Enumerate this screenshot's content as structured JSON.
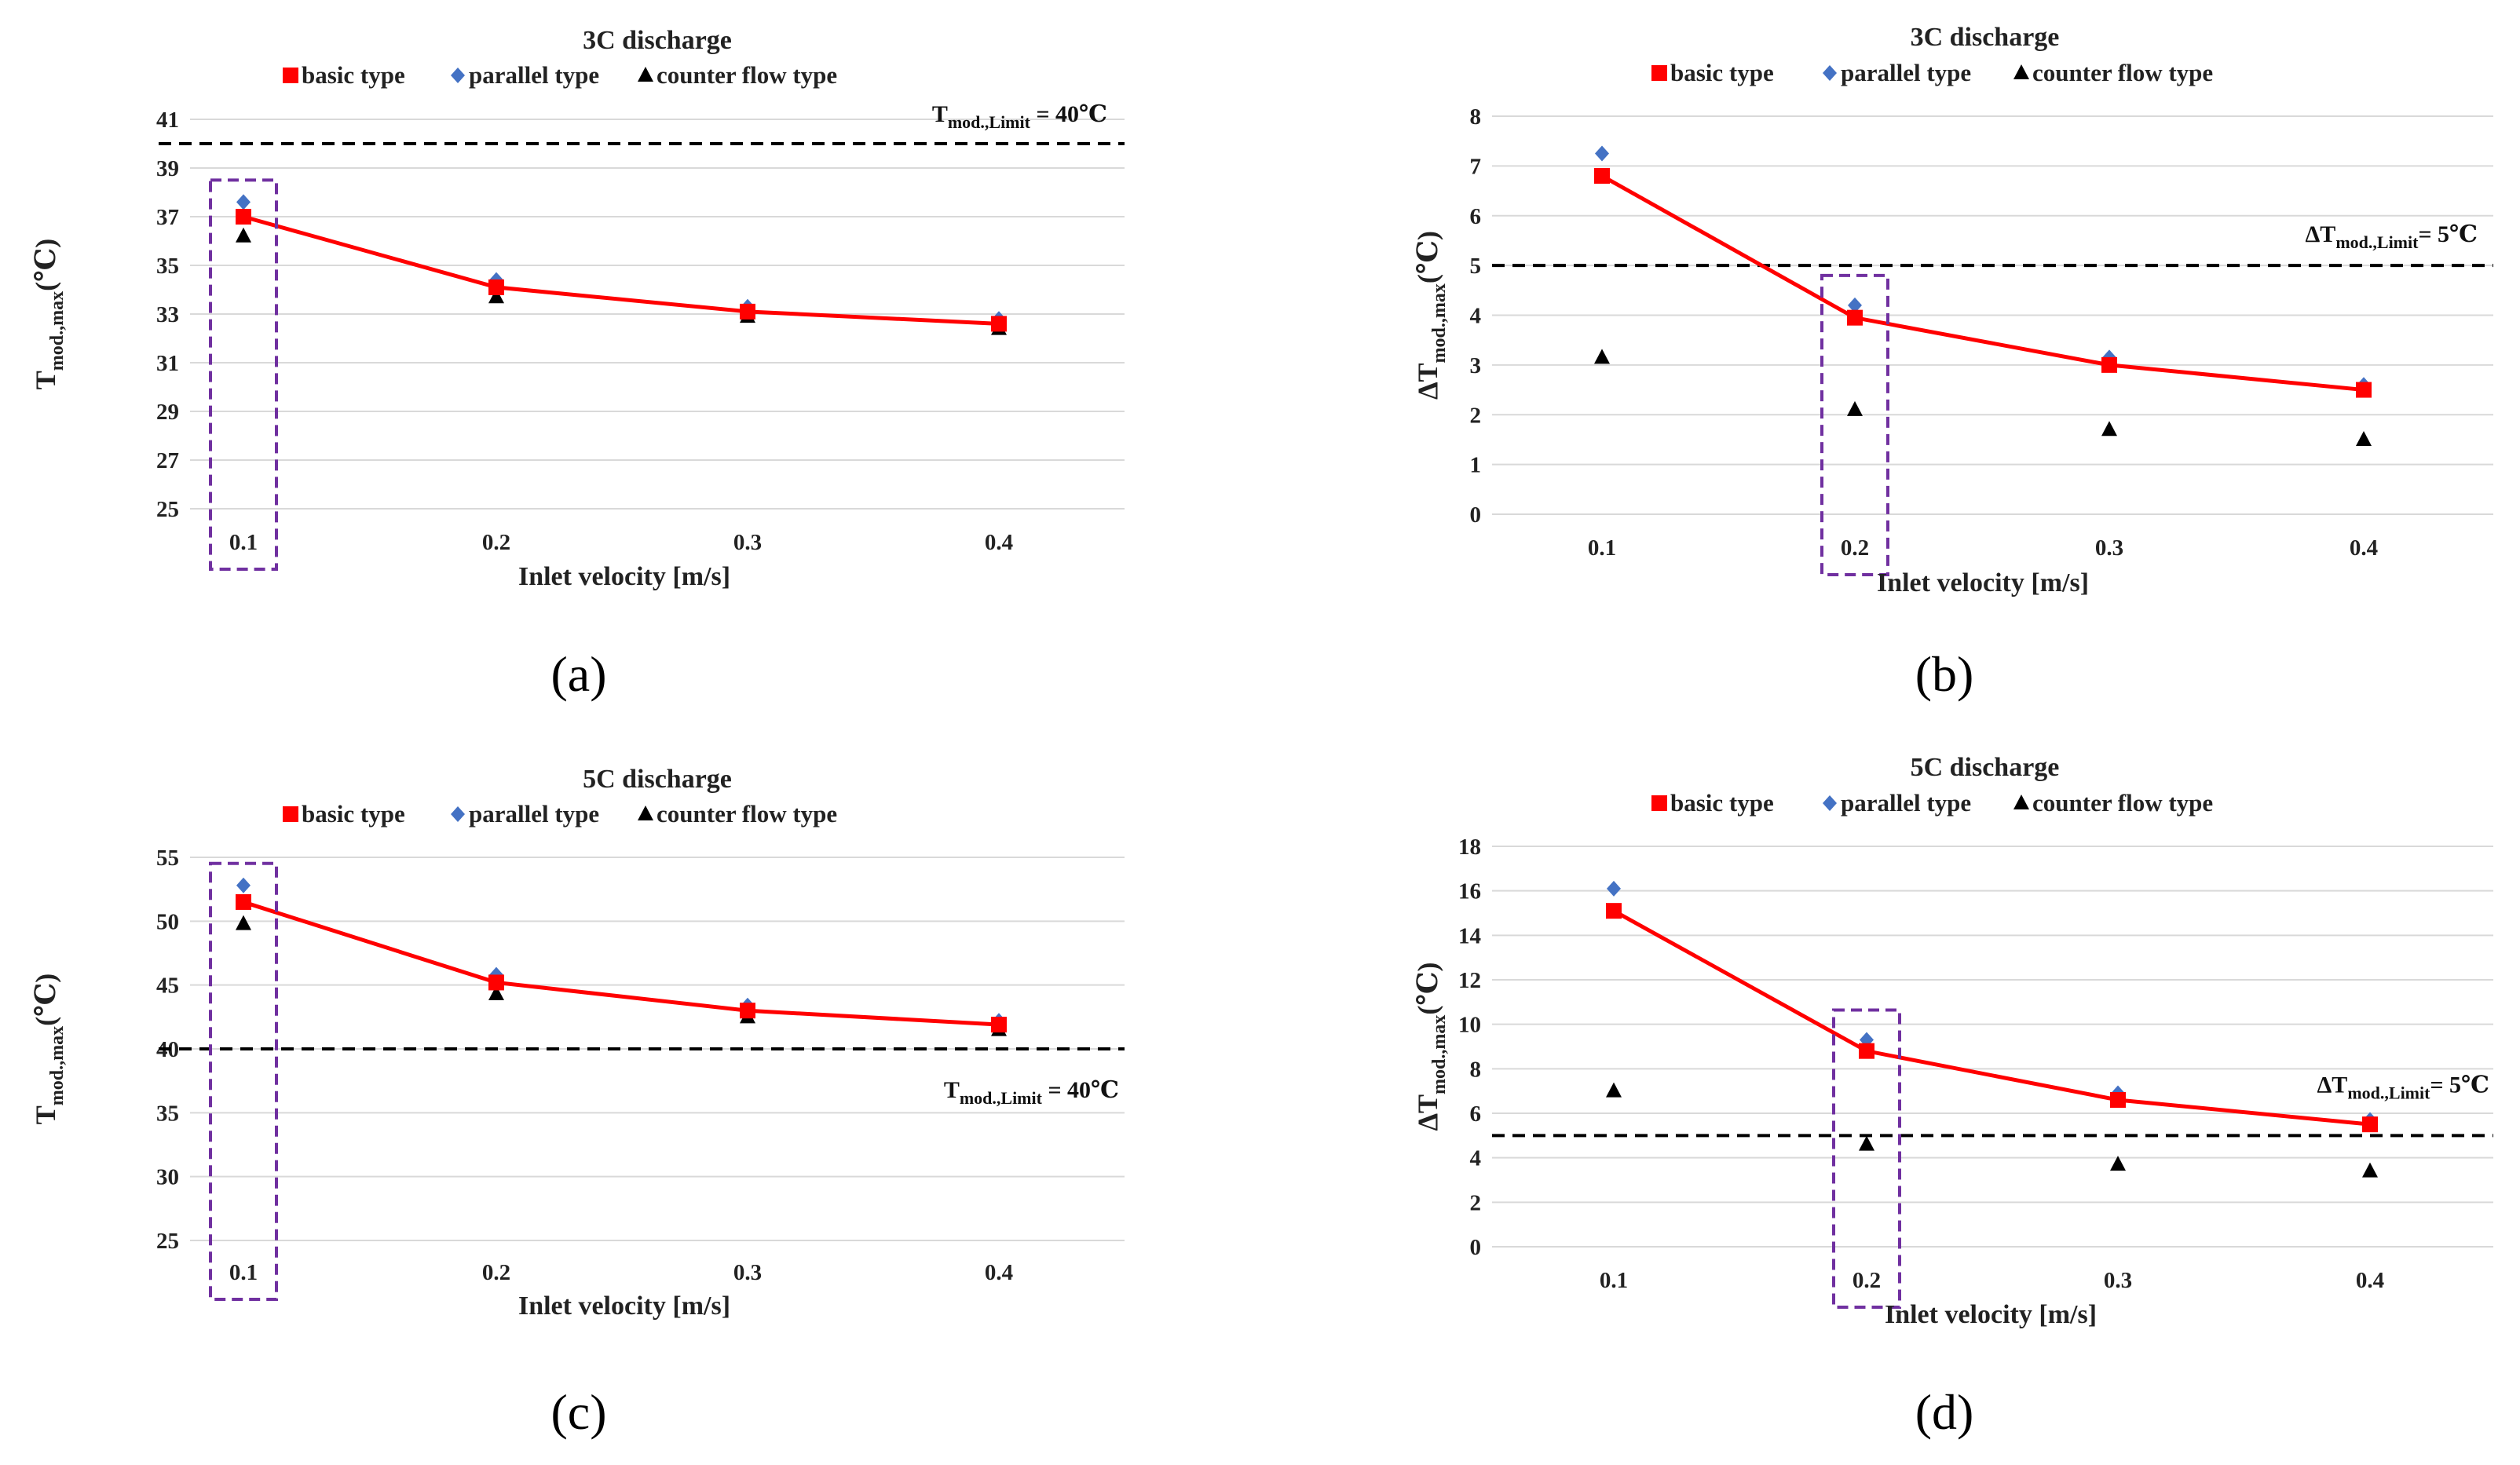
{
  "colors": {
    "basic": "#ff0000",
    "parallel": "#4472c4",
    "counter": "#000000",
    "highlight": "#7030a0",
    "grid": "#d9d9d9",
    "limit_line": "#000000"
  },
  "chart_data": [
    {
      "panel": "(a)",
      "type": "line",
      "title": "3C discharge",
      "xlabel": "Inlet velocity [m/s]",
      "ylabel": {
        "main": "T",
        "sub": "mod.,max",
        "unit": "(℃)"
      },
      "categories": [
        "0.1",
        "0.2",
        "0.3",
        "0.4"
      ],
      "ylim": [
        25,
        41
      ],
      "yticks": [
        25,
        27,
        29,
        31,
        33,
        35,
        37,
        39,
        41
      ],
      "grid": true,
      "legend_position": "top",
      "series": [
        {
          "name": "basic type",
          "marker": "square",
          "line": true,
          "values": [
            37.0,
            34.1,
            33.1,
            32.6
          ]
        },
        {
          "name": "parallel type",
          "marker": "diamond",
          "line": false,
          "values": [
            37.6,
            34.4,
            33.3,
            32.8
          ]
        },
        {
          "name": "counter flow type",
          "marker": "triangle",
          "line": false,
          "values": [
            36.2,
            33.7,
            32.9,
            32.4
          ]
        }
      ],
      "limit": {
        "value": 40,
        "label_main": "T",
        "label_sub": "mod.,Limit",
        "label_value": " = 40℃"
      },
      "highlight_category": "0.1"
    },
    {
      "panel": "(b)",
      "type": "line",
      "title": "3C discharge",
      "xlabel": "Inlet velocity [m/s]",
      "ylabel": {
        "main": "ΔT",
        "sub": "mod.,max",
        "unit": "(℃)"
      },
      "categories": [
        "0.1",
        "0.2",
        "0.3",
        "0.4"
      ],
      "ylim": [
        0,
        8
      ],
      "yticks": [
        0,
        1,
        2,
        3,
        4,
        5,
        6,
        7,
        8
      ],
      "grid": true,
      "legend_position": "top",
      "series": [
        {
          "name": "basic type",
          "marker": "square",
          "line": true,
          "values": [
            6.8,
            3.95,
            3.0,
            2.5
          ]
        },
        {
          "name": "parallel type",
          "marker": "diamond",
          "line": false,
          "values": [
            7.25,
            4.2,
            3.15,
            2.6
          ]
        },
        {
          "name": "counter flow type",
          "marker": "triangle",
          "line": false,
          "values": [
            3.15,
            2.1,
            1.7,
            1.5
          ]
        }
      ],
      "limit": {
        "value": 5,
        "label_main": "ΔT",
        "label_sub": "mod.,Limit",
        "label_value": "= 5℃"
      },
      "highlight_category": "0.2"
    },
    {
      "panel": "(c)",
      "type": "line",
      "title": "5C discharge",
      "xlabel": "Inlet velocity [m/s]",
      "ylabel": {
        "main": "T",
        "sub": "mod.,max",
        "unit": "(℃)"
      },
      "categories": [
        "0.1",
        "0.2",
        "0.3",
        "0.4"
      ],
      "ylim": [
        25,
        55
      ],
      "yticks": [
        25,
        30,
        35,
        40,
        45,
        50,
        55
      ],
      "grid": true,
      "legend_position": "top",
      "series": [
        {
          "name": "basic type",
          "marker": "square",
          "line": true,
          "values": [
            51.5,
            45.2,
            43.0,
            41.9
          ]
        },
        {
          "name": "parallel type",
          "marker": "diamond",
          "line": false,
          "values": [
            52.8,
            45.8,
            43.4,
            42.2
          ]
        },
        {
          "name": "counter flow type",
          "marker": "triangle",
          "line": false,
          "values": [
            49.8,
            44.3,
            42.5,
            41.5
          ]
        }
      ],
      "limit": {
        "value": 40,
        "label_main": "T",
        "label_sub": "mod.,Limit",
        "label_value": " = 40℃"
      },
      "highlight_category": "0.1"
    },
    {
      "panel": "(d)",
      "type": "line",
      "title": "5C discharge",
      "xlabel": "Inlet velocity [m/s]",
      "ylabel": {
        "main": "ΔT",
        "sub": "mod.,max",
        "unit": "(℃)"
      },
      "categories": [
        "0.1",
        "0.2",
        "0.3",
        "0.4"
      ],
      "ylim": [
        0,
        18
      ],
      "yticks": [
        0,
        2,
        4,
        6,
        8,
        10,
        12,
        14,
        16,
        18
      ],
      "grid": true,
      "legend_position": "top",
      "series": [
        {
          "name": "basic type",
          "marker": "square",
          "line": true,
          "values": [
            15.1,
            8.8,
            6.6,
            5.5
          ]
        },
        {
          "name": "parallel type",
          "marker": "diamond",
          "line": false,
          "values": [
            16.1,
            9.3,
            6.9,
            5.7
          ]
        },
        {
          "name": "counter flow type",
          "marker": "triangle",
          "line": false,
          "values": [
            7.0,
            4.6,
            3.7,
            3.4
          ]
        }
      ],
      "limit": {
        "value": 5,
        "label_main": "ΔT",
        "label_sub": "mod.,Limit",
        "label_value": "= 5℃"
      },
      "highlight_category": "0.2"
    }
  ]
}
